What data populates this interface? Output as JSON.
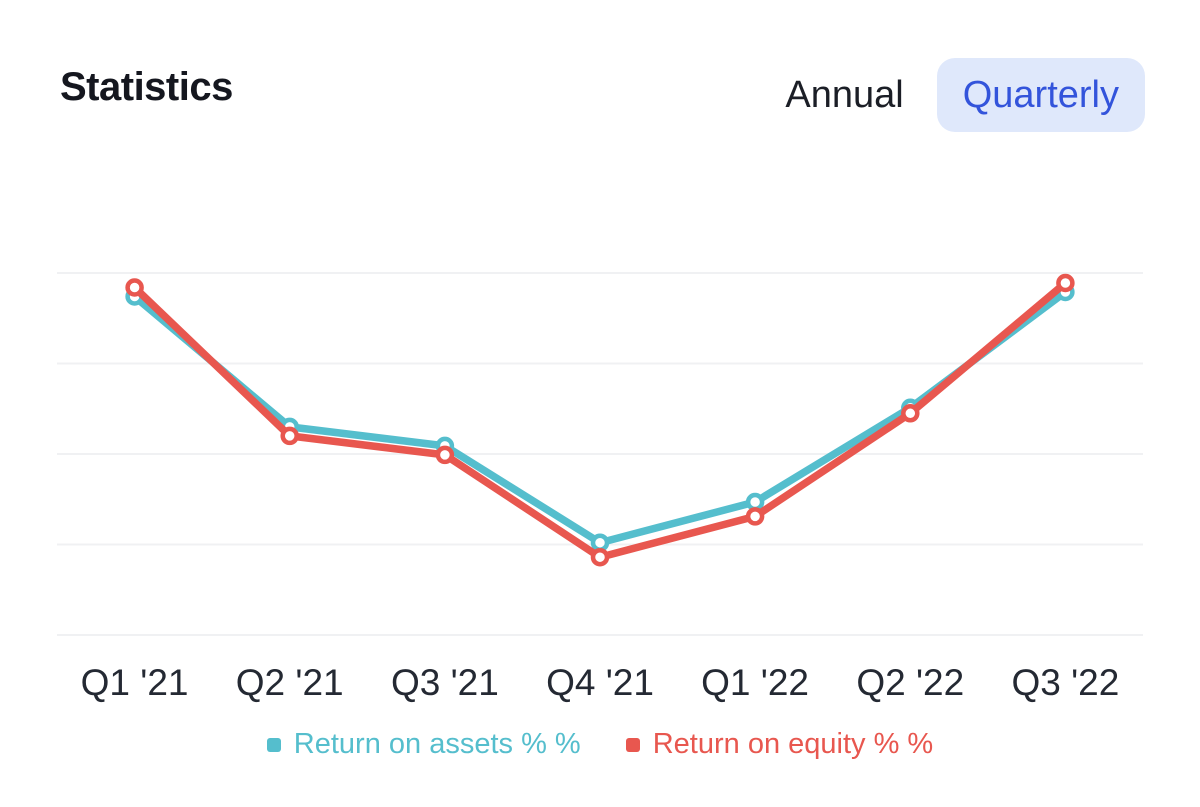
{
  "header": {
    "title": "Statistics",
    "toggle": {
      "annual_label": "Annual",
      "quarterly_label": "Quarterly",
      "selected": "Quarterly"
    }
  },
  "colors": {
    "accent_blue": "#3354DB",
    "pill_bg": "#DFE8FB",
    "toggle_text": "#1B1E26",
    "title_text": "#15171F",
    "axis_label": "#242933",
    "gridline": "#F0F1F3",
    "marker_fill": "#FFFFFF"
  },
  "chart_data": {
    "type": "line",
    "title": "Statistics",
    "categories": [
      "Q1 '21",
      "Q2 '21",
      "Q3 '21",
      "Q4 '21",
      "Q1 '22",
      "Q2 '22",
      "Q3 '22"
    ],
    "series": [
      {
        "id": "return-on-assets",
        "name": "Return on assets % %",
        "color": "#55BECD",
        "values": [
          3.74,
          2.3,
          2.09,
          1.02,
          1.47,
          2.51,
          3.79
        ]
      },
      {
        "id": "return-on-equity",
        "name": "Return on equity % %",
        "color": "#E8574F",
        "values": [
          3.84,
          2.2,
          1.99,
          0.86,
          1.31,
          2.45,
          3.89
        ]
      }
    ],
    "xlabel": "",
    "ylabel": "",
    "y_axis": {
      "labels_visible": false,
      "gridline_values": [
        0,
        1,
        2,
        3,
        4
      ],
      "note": "No y-axis tick labels are shown in the chart; series values are estimated in gridline units measured up from the bottom gridline."
    },
    "ylim": [
      0,
      4.25
    ],
    "grid": "horizontal-only",
    "legend_position": "bottom",
    "legend": [
      "Return on assets % %",
      "Return on equity % %"
    ]
  }
}
